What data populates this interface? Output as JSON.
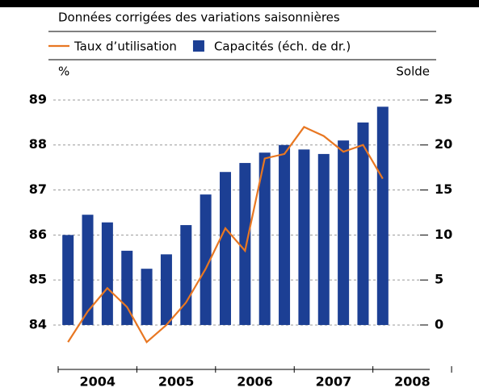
{
  "chart_data": {
    "type": "combo",
    "subtitle": "Données corrigées des variations saisonnières",
    "y_label": "%",
    "y2_label": "Solde",
    "categories": [
      null,
      null,
      null,
      null,
      null,
      null,
      null,
      null,
      null,
      null,
      null,
      null,
      null,
      null,
      null,
      null,
      null
    ],
    "periods": [
      "2004",
      "2005",
      "2006",
      "2007",
      "2008"
    ],
    "series": [
      {
        "name": "Taux d’utilisation",
        "type": "line",
        "axis": "y",
        "color": "#e87722",
        "values": [
          83.62,
          84.3,
          84.82,
          84.4,
          83.62,
          84.0,
          84.5,
          85.25,
          86.15,
          85.65,
          87.7,
          87.8,
          88.4,
          88.2,
          87.85,
          88.0,
          87.25
        ]
      },
      {
        "name": "Capacités (éch. de dr.)",
        "type": "bar",
        "axis": "y2",
        "color": "#1c3f94",
        "values": [
          10.0,
          12.25,
          11.4,
          8.25,
          6.25,
          7.85,
          11.1,
          14.5,
          17.0,
          18.0,
          19.15,
          20.0,
          19.5,
          19.0,
          20.5,
          22.5,
          24.25
        ]
      }
    ],
    "ylim": [
      83.3,
      89.25
    ],
    "yticks": [
      84,
      85,
      86,
      87,
      88,
      89
    ],
    "y2lim": [
      -3.5,
      26.25
    ],
    "y2ticks": [
      0,
      5,
      10,
      15,
      20,
      25
    ],
    "grid": true
  }
}
